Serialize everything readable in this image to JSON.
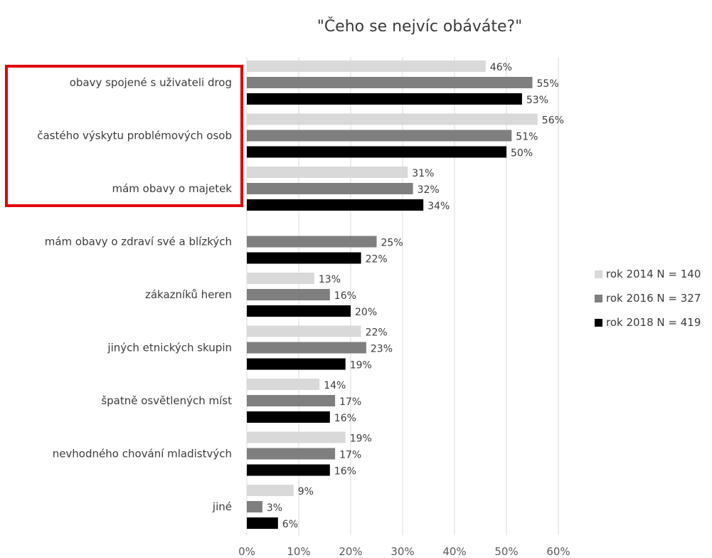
{
  "chart_data": {
    "type": "bar",
    "orientation": "horizontal",
    "title": "\"Čeho se nejvíc obáváte?\"",
    "xlabel": "",
    "ylabel": "",
    "xlim": [
      0,
      60
    ],
    "x_ticks": [
      "0%",
      "10%",
      "20%",
      "30%",
      "40%",
      "50%",
      "60%"
    ],
    "grid": "vertical",
    "legend_position": "right",
    "categories": [
      "obavy spojené s uživateli drog",
      "častého výskytu problémových osob",
      "mám obavy o majetek",
      "mám obavy o zdraví své a blízkých",
      "zákazníků heren",
      "jiných etnických skupin",
      "špatně osvětlených míst",
      "nevhodného chování mladistvých",
      "jiné"
    ],
    "series": [
      {
        "name": "rok 2014 N = 140",
        "color": "#d9d9d9",
        "values": [
          46,
          56,
          31,
          null,
          13,
          22,
          14,
          19,
          9
        ]
      },
      {
        "name": "rok 2016 N = 327",
        "color": "#7f7f7f",
        "values": [
          55,
          51,
          32,
          25,
          16,
          23,
          17,
          17,
          3
        ]
      },
      {
        "name": "rok 2018 N = 419",
        "color": "#000000",
        "values": [
          53,
          50,
          34,
          22,
          20,
          19,
          16,
          16,
          6
        ]
      }
    ],
    "highlight": {
      "categories": [
        0,
        1,
        2
      ],
      "color": "#e00000"
    }
  }
}
